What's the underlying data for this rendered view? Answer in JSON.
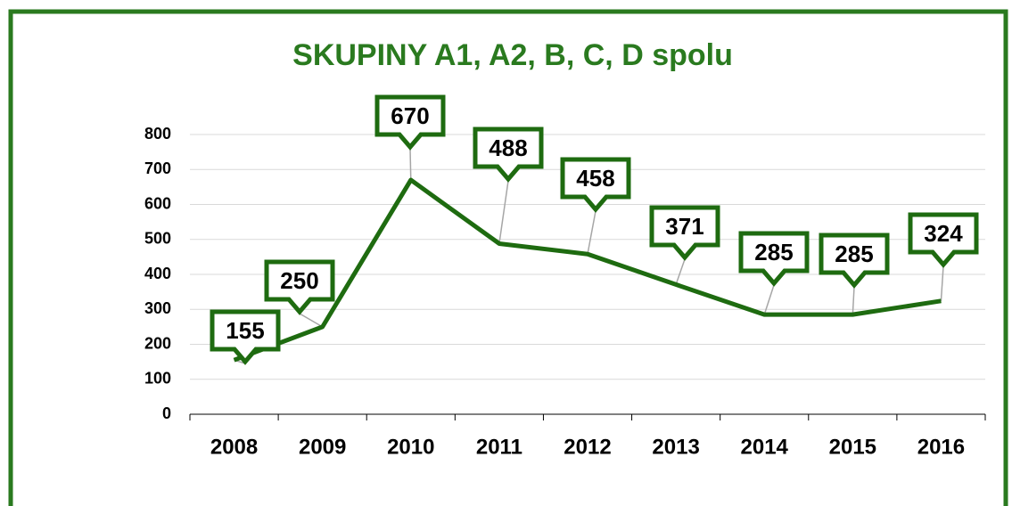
{
  "chart_data": {
    "type": "line",
    "title": "SKUPINY A1, A2, B, C, D spolu",
    "categories": [
      "2008",
      "2009",
      "2010",
      "2011",
      "2012",
      "2013",
      "2014",
      "2015",
      "2016"
    ],
    "values": [
      155,
      250,
      670,
      488,
      458,
      371,
      285,
      285,
      324
    ],
    "color": "#1e6b10",
    "ylim": [
      0,
      800
    ],
    "yticks": [
      0,
      100,
      200,
      300,
      400,
      500,
      600,
      700,
      800
    ],
    "grid": true
  }
}
